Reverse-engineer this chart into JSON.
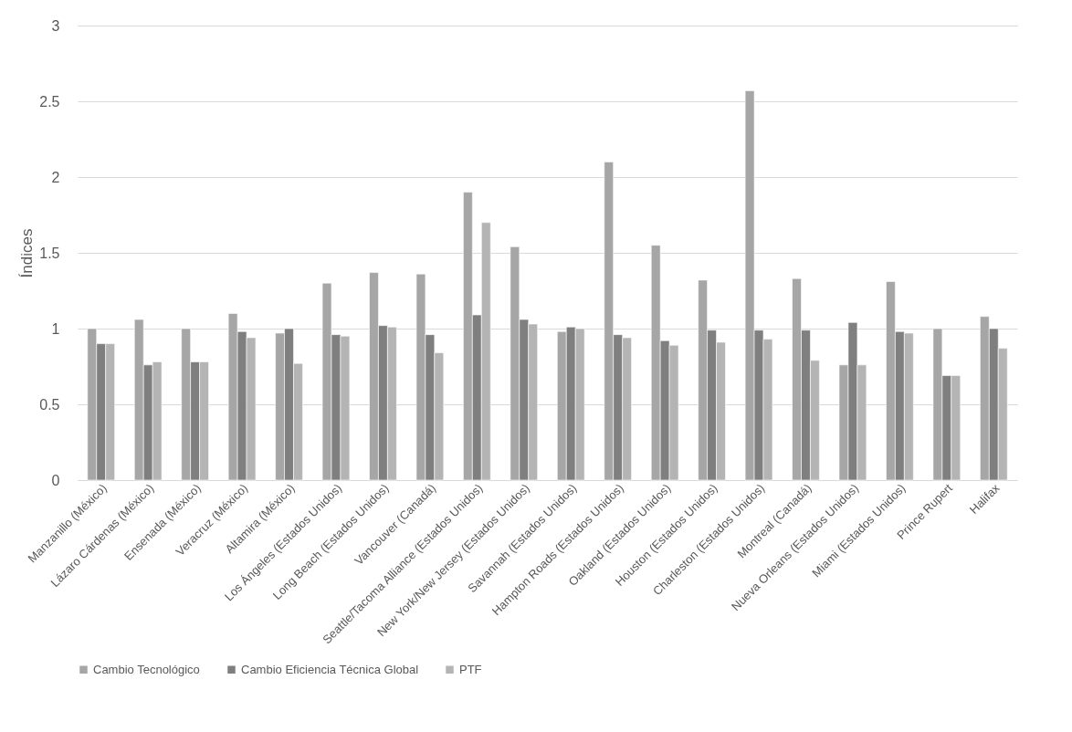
{
  "chart_data": {
    "type": "bar",
    "ylabel": "Índices",
    "categories": [
      "Manzanillo (México)",
      "Lázaro Cárdenas (México)",
      "Ensenada (México)",
      "Veracruz (México)",
      "Altamira (México)",
      "Los Ángeles (Estados Unidos)",
      "Long Beach (Estados Unidos)",
      "Vancouver (Canadá)",
      "Seattle/Tacoma Alliance (Estados Unidos)",
      "New York/New Jersey (Estados Unidos)",
      "Savannah (Estados Unidos)",
      "Hampton Roads (Estados Unidos)",
      "Oakland (Estados Unidos)",
      "Houston (Estados Unidos)",
      "Charleston (Estados Unidos)",
      "Montreal (Canadá)",
      "Nueva Orleans (Estados Unidos)",
      "Miami (Estados Unidos)",
      "Prince Rupert",
      "Halifax"
    ],
    "series": [
      {
        "name": "Cambio Tecnológico",
        "color": "#a6a6a6",
        "values": [
          1.0,
          1.06,
          1.0,
          1.1,
          0.97,
          1.3,
          1.37,
          1.36,
          1.9,
          1.54,
          0.98,
          2.1,
          1.55,
          1.32,
          2.57,
          1.33,
          0.76,
          1.31,
          1.0,
          1.08
        ]
      },
      {
        "name": "Cambio Eficiencia Técnica Global",
        "color": "#7f7f7f",
        "values": [
          0.9,
          0.76,
          0.78,
          0.98,
          1.0,
          0.96,
          1.02,
          0.96,
          1.09,
          1.06,
          1.01,
          0.96,
          0.92,
          0.99,
          0.99,
          0.99,
          1.04,
          0.98,
          0.69,
          1.0
        ]
      },
      {
        "name": "PTF",
        "color": "#b4b4b4",
        "values": [
          0.9,
          0.78,
          0.78,
          0.94,
          0.77,
          0.95,
          1.01,
          0.84,
          1.7,
          1.03,
          1.0,
          0.94,
          0.89,
          0.91,
          0.93,
          0.79,
          0.76,
          0.97,
          0.69,
          0.87
        ]
      }
    ],
    "ylim": [
      0,
      3
    ],
    "yticks": [
      0,
      0.5,
      1,
      1.5,
      2,
      2.5,
      3
    ],
    "grid": "y",
    "legend": "bottom"
  }
}
